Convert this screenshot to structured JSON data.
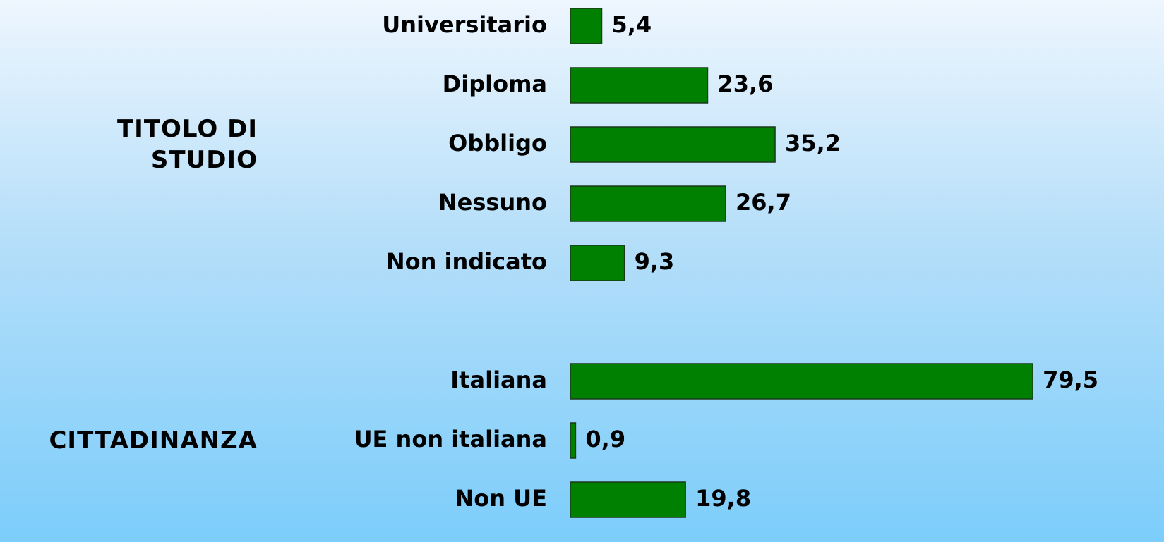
{
  "chart_data": {
    "type": "bar",
    "orientation": "horizontal",
    "color": "#008000",
    "groups": [
      {
        "name": "TITOLO DI STUDIO",
        "categories": [
          "Universitario",
          "Diploma",
          "Obbligo",
          "Nessuno",
          "Non indicato"
        ],
        "values": [
          5.4,
          23.6,
          35.2,
          26.7,
          9.3
        ],
        "value_labels": [
          "5,4",
          "23,6",
          "35,2",
          "26,7",
          "9,3"
        ]
      },
      {
        "name": "CITTADINANZA",
        "categories": [
          "Italiana",
          "UE non italiana",
          "Non UE"
        ],
        "values": [
          79.5,
          0.9,
          19.8
        ],
        "value_labels": [
          "79,5",
          "0,9",
          "19,8"
        ]
      }
    ]
  }
}
